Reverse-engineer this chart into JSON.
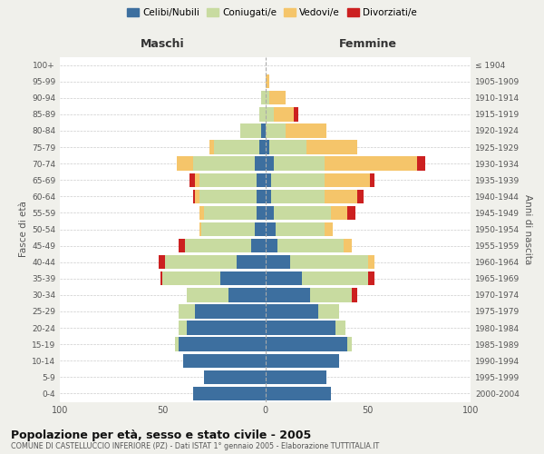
{
  "age_groups_bottom_to_top": [
    "0-4",
    "5-9",
    "10-14",
    "15-19",
    "20-24",
    "25-29",
    "30-34",
    "35-39",
    "40-44",
    "45-49",
    "50-54",
    "55-59",
    "60-64",
    "65-69",
    "70-74",
    "75-79",
    "80-84",
    "85-89",
    "90-94",
    "95-99",
    "100+"
  ],
  "birth_years_bottom_to_top": [
    "2000-2004",
    "1995-1999",
    "1990-1994",
    "1985-1989",
    "1980-1984",
    "1975-1979",
    "1970-1974",
    "1965-1969",
    "1960-1964",
    "1955-1959",
    "1950-1954",
    "1945-1949",
    "1940-1944",
    "1935-1939",
    "1930-1934",
    "1925-1929",
    "1920-1924",
    "1915-1919",
    "1910-1914",
    "1905-1909",
    "≤ 1904"
  ],
  "maschi": {
    "celibi": [
      35,
      30,
      40,
      42,
      38,
      34,
      18,
      22,
      14,
      7,
      5,
      4,
      4,
      4,
      5,
      3,
      2,
      0,
      0,
      0,
      0
    ],
    "coniugati": [
      0,
      0,
      0,
      2,
      4,
      8,
      20,
      28,
      35,
      32,
      26,
      26,
      28,
      28,
      30,
      22,
      10,
      3,
      2,
      0,
      0
    ],
    "vedovi": [
      0,
      0,
      0,
      0,
      0,
      0,
      0,
      0,
      0,
      0,
      1,
      2,
      2,
      2,
      8,
      2,
      0,
      0,
      0,
      0,
      0
    ],
    "divorziati": [
      0,
      0,
      0,
      0,
      0,
      0,
      0,
      1,
      3,
      3,
      0,
      0,
      1,
      3,
      0,
      0,
      0,
      0,
      0,
      0,
      0
    ]
  },
  "femmine": {
    "nubili": [
      32,
      30,
      36,
      40,
      34,
      26,
      22,
      18,
      12,
      6,
      5,
      4,
      3,
      3,
      4,
      2,
      0,
      0,
      0,
      0,
      0
    ],
    "coniugate": [
      0,
      0,
      0,
      2,
      5,
      10,
      20,
      32,
      38,
      32,
      24,
      28,
      26,
      26,
      25,
      18,
      10,
      4,
      2,
      0,
      0
    ],
    "vedove": [
      0,
      0,
      0,
      0,
      0,
      0,
      0,
      0,
      3,
      4,
      4,
      8,
      16,
      22,
      45,
      25,
      20,
      10,
      8,
      2,
      0
    ],
    "divorziate": [
      0,
      0,
      0,
      0,
      0,
      0,
      3,
      3,
      0,
      0,
      0,
      4,
      3,
      2,
      4,
      0,
      0,
      2,
      0,
      0,
      0
    ]
  },
  "colors": {
    "celibi": "#3d6f9f",
    "coniugati": "#c8dba0",
    "vedovi": "#f5c56a",
    "divorziati": "#cc2020"
  },
  "title": "Popolazione per età, sesso e stato civile - 2005",
  "subtitle": "COMUNE DI CASTELLUCCIO INFERIORE (PZ) - Dati ISTAT 1° gennaio 2005 - Elaborazione TUTTITALIA.IT",
  "xlabel_left": "Maschi",
  "xlabel_right": "Femmine",
  "ylabel_left": "Fasce di età",
  "ylabel_right": "Anni di nascita",
  "xlim": 100,
  "legend_labels": [
    "Celibi/Nubili",
    "Coniugati/e",
    "Vedovi/e",
    "Divorziati/e"
  ],
  "background_color": "#f0f0eb",
  "plot_bg": "#ffffff"
}
